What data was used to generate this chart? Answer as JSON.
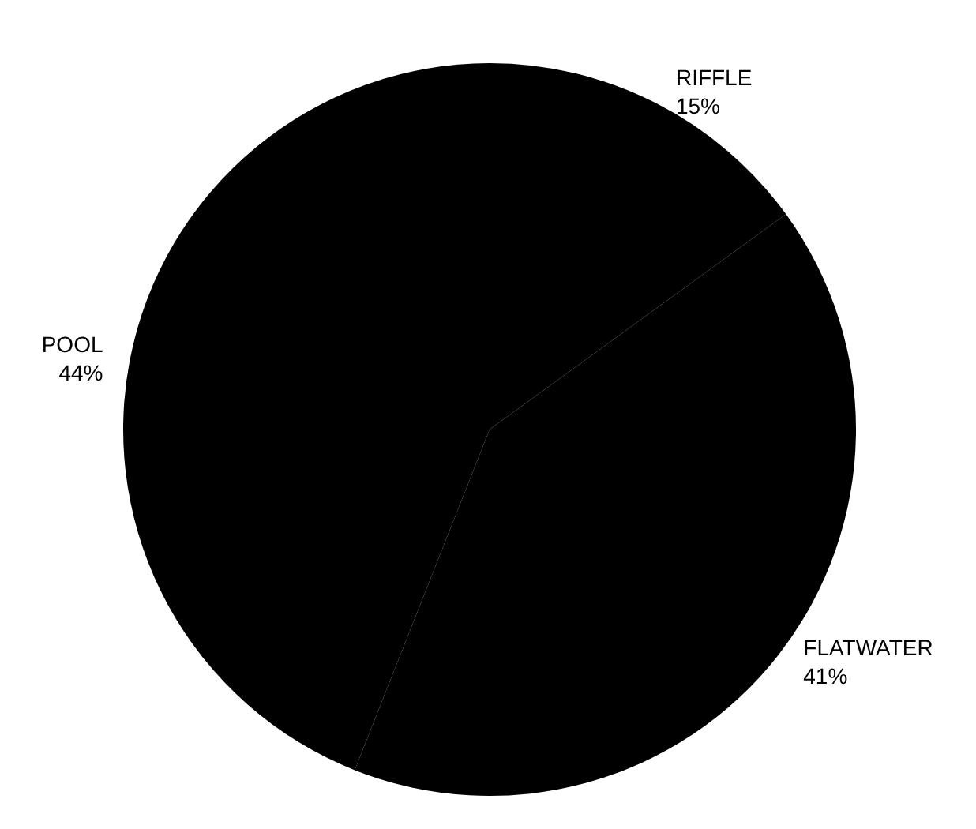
{
  "chart_data": {
    "type": "pie",
    "categories": [
      "RIFFLE",
      "FLATWATER",
      "POOL"
    ],
    "values": [
      15,
      41,
      44
    ],
    "value_labels": [
      "15%",
      "41%",
      "44%"
    ],
    "colors": [
      "#000000",
      "#000000",
      "#000000"
    ]
  }
}
